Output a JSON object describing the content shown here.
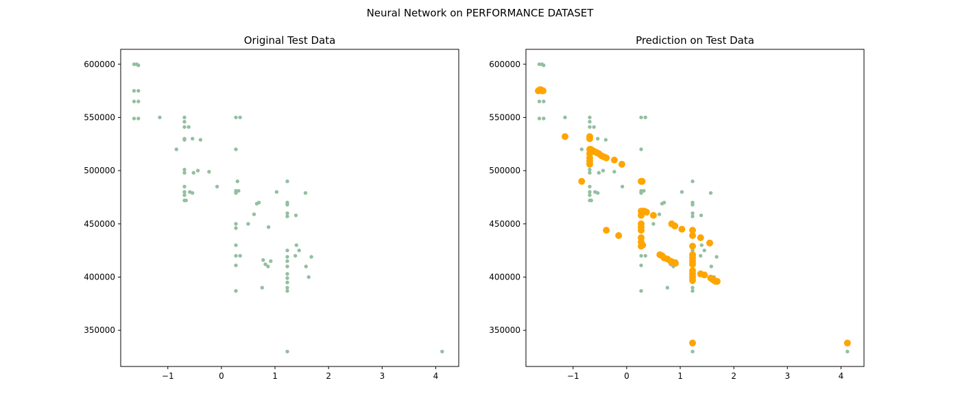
{
  "figure": {
    "suptitle": "Neural Network on PERFORMANCE DATASET"
  },
  "colors": {
    "test": "#93bfa0",
    "prediction": "#ffa500"
  },
  "chart_data": [
    {
      "type": "scatter",
      "title": "Original Test Data",
      "xlim": [
        -1.88,
        4.43
      ],
      "ylim": [
        316000,
        614000
      ],
      "xticks": [
        -1,
        0,
        1,
        2,
        3,
        4
      ],
      "xtick_labels": [
        "−1",
        "0",
        "1",
        "2",
        "3",
        "4"
      ],
      "yticks": [
        350000,
        400000,
        450000,
        500000,
        550000,
        600000
      ],
      "ytick_labels": [
        "350000",
        "400000",
        "450000",
        "500000",
        "550000",
        "600000"
      ],
      "series": [
        {
          "role": "test",
          "points": [
            [
              -1.63,
              600000
            ],
            [
              -1.58,
              600000
            ],
            [
              -1.55,
              599000
            ],
            [
              -1.63,
              575000
            ],
            [
              -1.55,
              575000
            ],
            [
              -1.63,
              565000
            ],
            [
              -1.55,
              565000
            ],
            [
              -1.63,
              549000
            ],
            [
              -1.55,
              549000
            ],
            [
              -1.15,
              550000
            ],
            [
              -0.69,
              550000
            ],
            [
              -0.69,
              546000
            ],
            [
              -0.69,
              541000
            ],
            [
              -0.61,
              541000
            ],
            [
              -0.69,
              530000
            ],
            [
              -0.69,
              529000
            ],
            [
              -0.54,
              530000
            ],
            [
              -0.39,
              529000
            ],
            [
              -0.84,
              520000
            ],
            [
              -0.69,
              501000
            ],
            [
              -0.69,
              498000
            ],
            [
              -0.52,
              498000
            ],
            [
              -0.44,
              500000
            ],
            [
              -0.23,
              499000
            ],
            [
              -0.69,
              485000
            ],
            [
              -0.69,
              480000
            ],
            [
              -0.69,
              477000
            ],
            [
              -0.69,
              472000
            ],
            [
              -0.66,
              472000
            ],
            [
              -0.59,
              480000
            ],
            [
              -0.54,
              479000
            ],
            [
              -0.08,
              485000
            ],
            [
              0.27,
              550000
            ],
            [
              0.35,
              550000
            ],
            [
              0.27,
              520000
            ],
            [
              0.3,
              490000
            ],
            [
              0.27,
              481000
            ],
            [
              0.32,
              481000
            ],
            [
              0.27,
              479000
            ],
            [
              0.27,
              450000
            ],
            [
              0.27,
              446000
            ],
            [
              0.5,
              450000
            ],
            [
              0.27,
              430000
            ],
            [
              0.27,
              420000
            ],
            [
              0.35,
              420000
            ],
            [
              0.27,
              411000
            ],
            [
              0.27,
              387000
            ],
            [
              0.61,
              459000
            ],
            [
              0.66,
              469000
            ],
            [
              0.7,
              470000
            ],
            [
              0.88,
              447000
            ],
            [
              0.78,
              416000
            ],
            [
              0.82,
              412000
            ],
            [
              0.87,
              410000
            ],
            [
              0.92,
              415000
            ],
            [
              0.76,
              390000
            ],
            [
              1.03,
              480000
            ],
            [
              1.23,
              490000
            ],
            [
              1.23,
              470000
            ],
            [
              1.23,
              468000
            ],
            [
              1.23,
              460000
            ],
            [
              1.23,
              457000
            ],
            [
              1.23,
              425000
            ],
            [
              1.23,
              419000
            ],
            [
              1.23,
              415000
            ],
            [
              1.23,
              410000
            ],
            [
              1.23,
              403000
            ],
            [
              1.23,
              399000
            ],
            [
              1.23,
              395000
            ],
            [
              1.23,
              390000
            ],
            [
              1.23,
              387000
            ],
            [
              1.23,
              330000
            ],
            [
              1.39,
              458000
            ],
            [
              1.4,
              430000
            ],
            [
              1.45,
              425000
            ],
            [
              1.38,
              420000
            ],
            [
              1.57,
              479000
            ],
            [
              1.58,
              410000
            ],
            [
              1.63,
              400000
            ],
            [
              1.68,
              419000
            ],
            [
              4.12,
              330000
            ]
          ]
        }
      ]
    },
    {
      "type": "scatter",
      "title": "Prediction on Test Data",
      "xlim": [
        -1.88,
        4.43
      ],
      "ylim": [
        316000,
        614000
      ],
      "xticks": [
        -1,
        0,
        1,
        2,
        3,
        4
      ],
      "xtick_labels": [
        "−1",
        "0",
        "1",
        "2",
        "3",
        "4"
      ],
      "yticks": [
        350000,
        400000,
        450000,
        500000,
        550000,
        600000
      ],
      "ytick_labels": [
        "350000",
        "400000",
        "450000",
        "500000",
        "550000",
        "600000"
      ],
      "series": [
        {
          "role": "test",
          "points": [
            [
              -1.63,
              600000
            ],
            [
              -1.58,
              600000
            ],
            [
              -1.55,
              599000
            ],
            [
              -1.63,
              575000
            ],
            [
              -1.55,
              575000
            ],
            [
              -1.63,
              565000
            ],
            [
              -1.55,
              565000
            ],
            [
              -1.63,
              549000
            ],
            [
              -1.55,
              549000
            ],
            [
              -1.15,
              550000
            ],
            [
              -0.69,
              550000
            ],
            [
              -0.69,
              546000
            ],
            [
              -0.69,
              541000
            ],
            [
              -0.61,
              541000
            ],
            [
              -0.69,
              530000
            ],
            [
              -0.69,
              529000
            ],
            [
              -0.54,
              530000
            ],
            [
              -0.39,
              529000
            ],
            [
              -0.84,
              520000
            ],
            [
              -0.69,
              501000
            ],
            [
              -0.69,
              498000
            ],
            [
              -0.52,
              498000
            ],
            [
              -0.44,
              500000
            ],
            [
              -0.23,
              499000
            ],
            [
              -0.69,
              485000
            ],
            [
              -0.69,
              480000
            ],
            [
              -0.69,
              477000
            ],
            [
              -0.69,
              472000
            ],
            [
              -0.66,
              472000
            ],
            [
              -0.59,
              480000
            ],
            [
              -0.54,
              479000
            ],
            [
              -0.08,
              485000
            ],
            [
              0.27,
              550000
            ],
            [
              0.35,
              550000
            ],
            [
              0.27,
              520000
            ],
            [
              0.3,
              490000
            ],
            [
              0.27,
              481000
            ],
            [
              0.32,
              481000
            ],
            [
              0.27,
              479000
            ],
            [
              0.27,
              450000
            ],
            [
              0.27,
              446000
            ],
            [
              0.5,
              450000
            ],
            [
              0.27,
              430000
            ],
            [
              0.27,
              420000
            ],
            [
              0.35,
              420000
            ],
            [
              0.27,
              411000
            ],
            [
              0.27,
              387000
            ],
            [
              0.61,
              459000
            ],
            [
              0.66,
              469000
            ],
            [
              0.7,
              470000
            ],
            [
              0.88,
              447000
            ],
            [
              0.78,
              416000
            ],
            [
              0.82,
              412000
            ],
            [
              0.87,
              410000
            ],
            [
              0.92,
              415000
            ],
            [
              0.76,
              390000
            ],
            [
              1.03,
              480000
            ],
            [
              1.23,
              490000
            ],
            [
              1.23,
              470000
            ],
            [
              1.23,
              468000
            ],
            [
              1.23,
              460000
            ],
            [
              1.23,
              457000
            ],
            [
              1.23,
              425000
            ],
            [
              1.23,
              419000
            ],
            [
              1.23,
              415000
            ],
            [
              1.23,
              410000
            ],
            [
              1.23,
              403000
            ],
            [
              1.23,
              399000
            ],
            [
              1.23,
              395000
            ],
            [
              1.23,
              390000
            ],
            [
              1.23,
              387000
            ],
            [
              1.23,
              330000
            ],
            [
              1.39,
              458000
            ],
            [
              1.4,
              430000
            ],
            [
              1.45,
              425000
            ],
            [
              1.38,
              420000
            ],
            [
              1.57,
              479000
            ],
            [
              1.58,
              410000
            ],
            [
              1.63,
              400000
            ],
            [
              1.68,
              419000
            ],
            [
              4.12,
              330000
            ]
          ]
        },
        {
          "role": "prediction",
          "points": [
            [
              -1.65,
              575000
            ],
            [
              -1.62,
              576000
            ],
            [
              -1.6,
              576000
            ],
            [
              -1.58,
              575000
            ],
            [
              -1.56,
              575000
            ],
            [
              -1.15,
              532000
            ],
            [
              -0.69,
              532000
            ],
            [
              -0.69,
              530000
            ],
            [
              -0.69,
              520000
            ],
            [
              -0.67,
              520000
            ],
            [
              -0.64,
              519000
            ],
            [
              -0.6,
              518000
            ],
            [
              -0.56,
              517000
            ],
            [
              -0.52,
              516000
            ],
            [
              -0.47,
              514000
            ],
            [
              -0.43,
              513000
            ],
            [
              -0.38,
              512000
            ],
            [
              -0.69,
              516000
            ],
            [
              -0.69,
              512000
            ],
            [
              -0.69,
              509000
            ],
            [
              -0.69,
              506000
            ],
            [
              -0.23,
              510000
            ],
            [
              -0.09,
              506000
            ],
            [
              -0.84,
              490000
            ],
            [
              -0.38,
              444000
            ],
            [
              -0.15,
              439000
            ],
            [
              0.27,
              490000
            ],
            [
              0.29,
              490000
            ],
            [
              0.27,
              462000
            ],
            [
              0.3,
              462000
            ],
            [
              0.33,
              462000
            ],
            [
              0.37,
              461000
            ],
            [
              0.27,
              458000
            ],
            [
              0.5,
              458000
            ],
            [
              0.27,
              450000
            ],
            [
              0.27,
              447000
            ],
            [
              0.27,
              444000
            ],
            [
              0.27,
              437000
            ],
            [
              0.27,
              433000
            ],
            [
              0.3,
              430000
            ],
            [
              0.27,
              429000
            ],
            [
              0.62,
              421000
            ],
            [
              0.66,
              420000
            ],
            [
              0.7,
              418000
            ],
            [
              0.76,
              417000
            ],
            [
              0.82,
              415000
            ],
            [
              0.86,
              414000
            ],
            [
              0.91,
              413000
            ],
            [
              0.84,
              450000
            ],
            [
              0.9,
              448000
            ],
            [
              1.03,
              445000
            ],
            [
              1.23,
              444000
            ],
            [
              1.23,
              439000
            ],
            [
              1.23,
              429000
            ],
            [
              1.23,
              421000
            ],
            [
              1.23,
              418000
            ],
            [
              1.23,
              415000
            ],
            [
              1.23,
              412000
            ],
            [
              1.23,
              406000
            ],
            [
              1.23,
              403000
            ],
            [
              1.23,
              400000
            ],
            [
              1.23,
              397000
            ],
            [
              1.23,
              338000
            ],
            [
              1.38,
              403000
            ],
            [
              1.45,
              402000
            ],
            [
              1.38,
              437000
            ],
            [
              1.55,
              432000
            ],
            [
              1.57,
              399000
            ],
            [
              1.6,
              398000
            ],
            [
              1.63,
              397000
            ],
            [
              1.66,
              396000
            ],
            [
              1.69,
              396000
            ],
            [
              4.12,
              338000
            ]
          ]
        }
      ]
    }
  ]
}
